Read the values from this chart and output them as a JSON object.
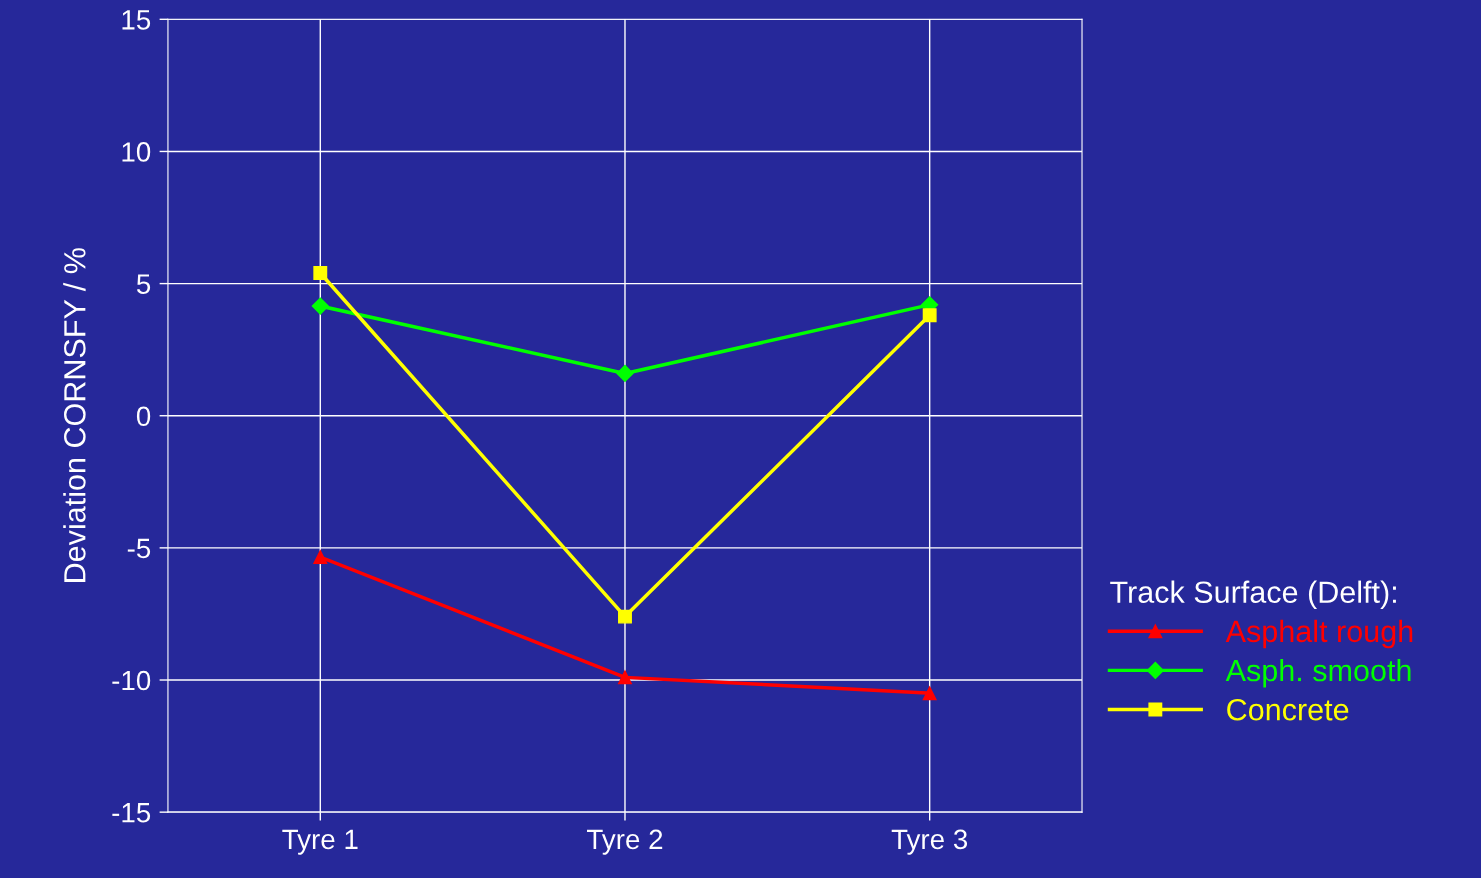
{
  "chart_data": {
    "type": "line",
    "ylabel": "Deviation CORNSFY / %",
    "legend_title": "Track Surface (Delft):",
    "categories": [
      "Tyre 1",
      "Tyre 2",
      "Tyre 3"
    ],
    "series": [
      {
        "name": "Asphalt rough",
        "color": "#ff0000",
        "marker": "triangle",
        "values": [
          -5.35,
          -9.9,
          -10.5
        ]
      },
      {
        "name": "Asph. smooth",
        "color": "#00ff00",
        "marker": "diamond",
        "values": [
          4.15,
          1.6,
          4.2
        ]
      },
      {
        "name": "Concrete",
        "color": "#ffff00",
        "marker": "square",
        "values": [
          5.4,
          -7.6,
          3.8
        ]
      }
    ],
    "ylim": [
      -15,
      15
    ],
    "yticks": [
      -15,
      -10,
      -5,
      0,
      5,
      10,
      15
    ],
    "grid": true,
    "legend": "right",
    "line_style": "solid"
  }
}
